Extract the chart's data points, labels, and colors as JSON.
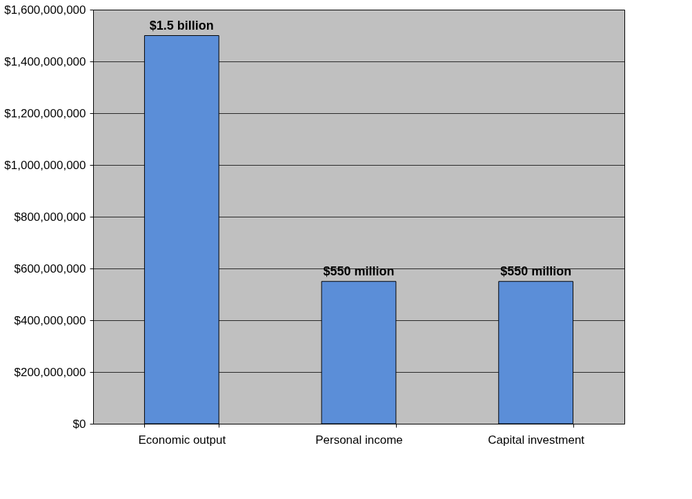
{
  "chart_data": {
    "type": "bar",
    "categories": [
      "Economic output",
      "Personal income",
      "Capital investment"
    ],
    "values": [
      1500000000,
      550000000,
      550000000
    ],
    "value_labels": [
      "$1.5 billion",
      "$550 million",
      "$550 million"
    ],
    "color": "#5b8ed8",
    "ylim": [
      0,
      1600000000
    ],
    "yticks": [
      {
        "value": 0,
        "label": "$0"
      },
      {
        "value": 200000000,
        "label": "$200,000,000"
      },
      {
        "value": 400000000,
        "label": "$400,000,000"
      },
      {
        "value": 600000000,
        "label": "$600,000,000"
      },
      {
        "value": 800000000,
        "label": "$800,000,000"
      },
      {
        "value": 1000000000,
        "label": "$1,000,000,000"
      },
      {
        "value": 1200000000,
        "label": "$1,200,000,000"
      },
      {
        "value": 1400000000,
        "label": "$1,400,000,000"
      },
      {
        "value": 1600000000,
        "label": "$1,600,000,000"
      }
    ],
    "grid": "y"
  }
}
